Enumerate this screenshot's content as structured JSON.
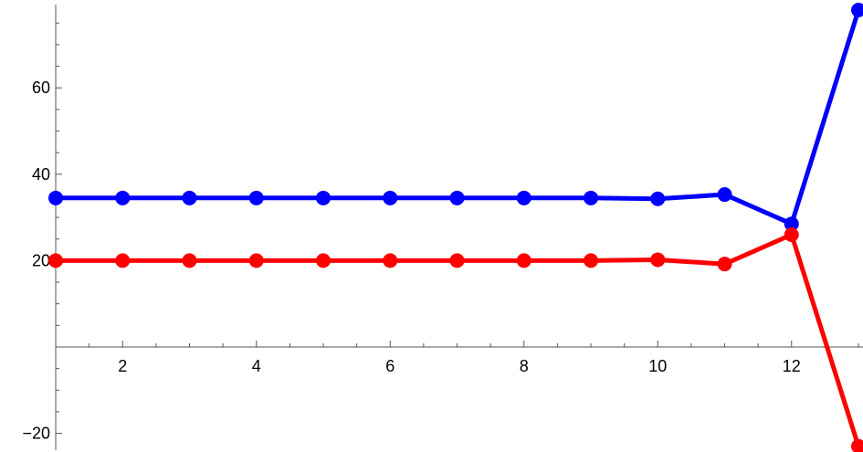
{
  "chart_data": {
    "type": "line",
    "title": "",
    "xlabel": "",
    "ylabel": "",
    "xlim": [
      1,
      13
    ],
    "ylim": [
      -22,
      78
    ],
    "x_ticks": [
      2,
      4,
      6,
      8,
      10,
      12
    ],
    "x_tick_labels": [
      "2",
      "4",
      "6",
      "8",
      "10",
      "12"
    ],
    "y_ticks": [
      -20,
      20,
      40,
      60
    ],
    "y_tick_labels": [
      "−20",
      "20",
      "40",
      "60"
    ],
    "grid": false,
    "legend": "none",
    "x": [
      1,
      2,
      3,
      4,
      5,
      6,
      7,
      8,
      9,
      10,
      11,
      12,
      13
    ],
    "series": [
      {
        "color": "#0000ff",
        "values": [
          34.5,
          34.5,
          34.5,
          34.5,
          34.5,
          34.5,
          34.5,
          34.5,
          34.5,
          34.3,
          35.3,
          28.5,
          78
        ]
      },
      {
        "color": "#ff0000",
        "values": [
          20.0,
          20.0,
          20.0,
          20.0,
          20.0,
          20.0,
          20.0,
          20.0,
          20.0,
          20.2,
          19.2,
          26.0,
          -23
        ]
      }
    ]
  }
}
